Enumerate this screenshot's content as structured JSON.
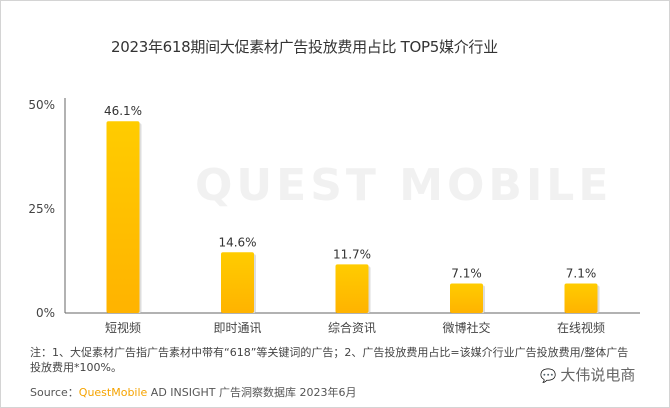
{
  "title": "2023年618期间大促素材广告投放费用占比 TOP5媒介行业",
  "watermark": "QUEST MOBILE",
  "chart_data": {
    "type": "bar",
    "title": "2023年618期间大促素材广告投放费用占比 TOP5媒介行业",
    "categories": [
      "短视频",
      "即时通讯",
      "综合资讯",
      "微博社交",
      "在线视频"
    ],
    "values": [
      46.1,
      14.6,
      11.7,
      7.1,
      7.1
    ],
    "data_labels": [
      "46.1%",
      "14.6%",
      "11.7%",
      "7.1%",
      "7.1%"
    ],
    "yticks": [
      "0%",
      "25%",
      "50%"
    ],
    "ytick_values": [
      0,
      25,
      50
    ],
    "ylim": [
      0,
      50
    ],
    "xlabel": "",
    "ylabel": "",
    "grid": false,
    "bar_color_top": "#ffcc00",
    "bar_color_bottom": "#ffb300"
  },
  "note": "注：1、大促素材广告指广告素材中带有“618”等关键词的广告；2、广告投放费用占比=该媒介行业广告投放费用/整体广告投放费用*100%。",
  "source": {
    "prefix": "Source：",
    "brand": "QuestMobile",
    "rest": " AD INSIGHT 广告洞察数据库 2023年6月"
  },
  "wechat_account": "大伟说电商"
}
